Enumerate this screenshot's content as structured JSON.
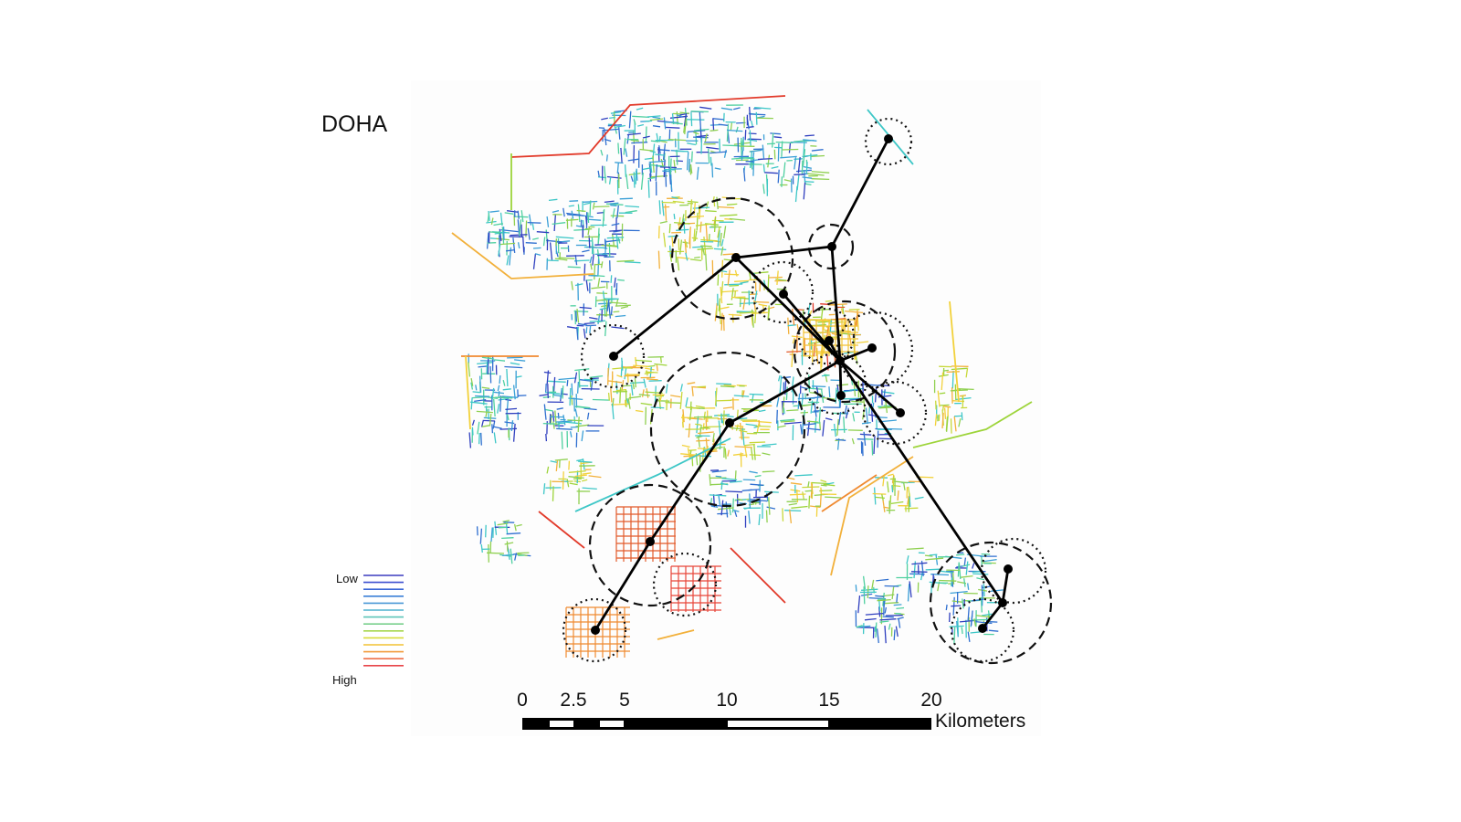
{
  "map": {
    "title": "DOHA",
    "legend": {
      "low_label": "Low",
      "high_label": "High",
      "ramp_colors": [
        "#3b3bbf",
        "#3d4fd0",
        "#3a66d6",
        "#3a7fd8",
        "#4a98d6",
        "#4fb2cf",
        "#5cc5b8",
        "#7ad08e",
        "#a6d64e",
        "#d8dc3a",
        "#f2c233",
        "#f29a3a",
        "#ef7048",
        "#e8464a"
      ]
    },
    "scale_bar": {
      "ticks": [
        "0",
        "2.5",
        "5",
        "10",
        "15",
        "20"
      ],
      "units": "Kilometers"
    },
    "colors": {
      "low": "#2f2fb0",
      "mid": "#3ec7c7",
      "green": "#9dd43a",
      "high_yellow": "#f2d13a",
      "high_orange": "#f08a30",
      "high_red": "#e23a2a",
      "network_lines": "#000000"
    }
  }
}
